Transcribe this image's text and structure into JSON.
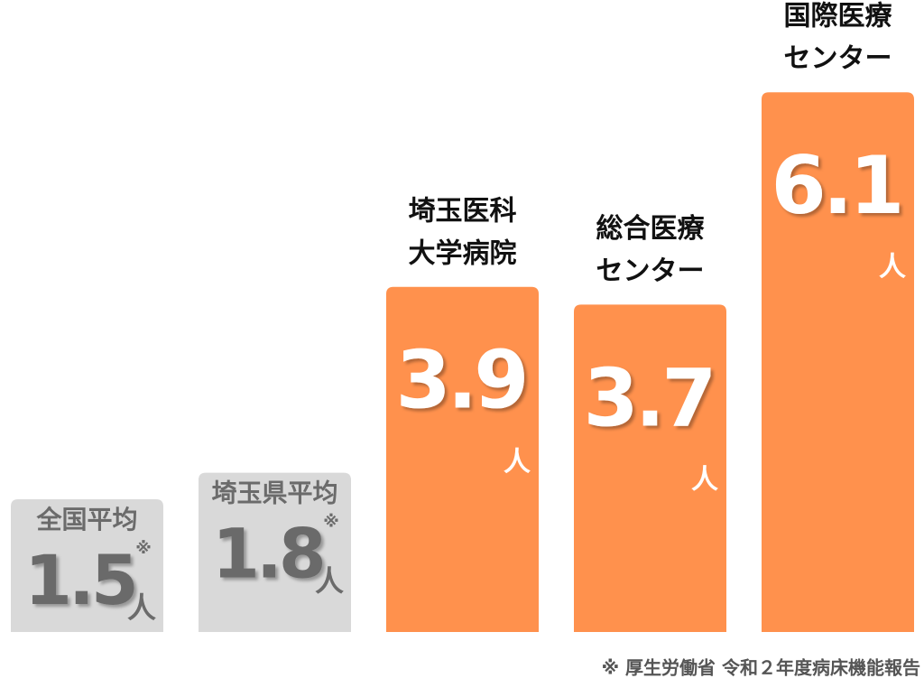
{
  "chart_data": {
    "type": "bar",
    "categories": [
      [
        "全国平均"
      ],
      [
        "埼玉県平均"
      ],
      [
        "埼玉医科",
        "大学病院"
      ],
      [
        "総合医療",
        "センター"
      ],
      [
        "国際医療",
        "センター"
      ]
    ],
    "values": [
      1.5,
      1.8,
      3.9,
      3.7,
      6.1
    ],
    "colors": [
      "#d9d9d9",
      "#d9d9d9",
      "#ff914d",
      "#ff914d",
      "#ff914d"
    ],
    "value_notes": [
      "※",
      "※",
      null,
      null,
      null
    ],
    "unit": "人",
    "source": "※ 厚生労働省 令和２年度病床機能報告"
  }
}
